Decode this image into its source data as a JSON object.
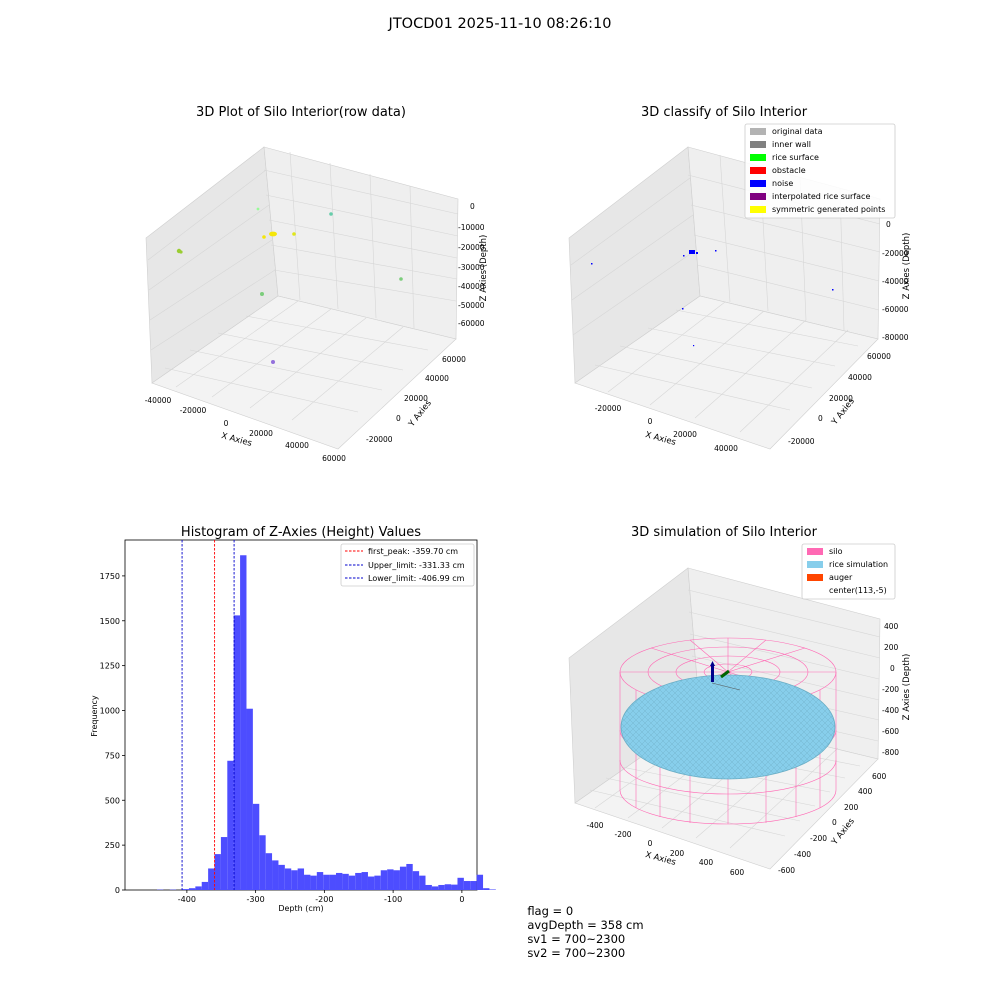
{
  "suptitle": "JTOCD01 2025-11-10 08:26:10",
  "colors": {
    "hist_bar": "#4d4dff",
    "first_peak": "#ff0000",
    "limit": "#0000cc",
    "silo": "#ff69b4",
    "rice": "#87ceeb",
    "auger": "#ff4500",
    "pane": "#f2f2f2"
  },
  "status": {
    "flag": "flag = 0",
    "avg_depth": "avgDepth = 358 cm",
    "sv1": "sv1 = 700~2300",
    "sv2": "sv2 = 700~2300"
  },
  "chart_data": [
    {
      "type": "scatter",
      "subtype": "3d",
      "title": "3D Plot of Silo Interior(row data)",
      "xlabel": "X Axies",
      "ylabel": "Y Axies",
      "zlabel": "Z Axies (Depth)",
      "x_ticks": [
        "-40000",
        "-20000",
        "0",
        "20000",
        "40000",
        "60000"
      ],
      "y_ticks": [
        "-20000",
        "0",
        "20000",
        "40000",
        "60000"
      ],
      "z_ticks": [
        "0",
        "-10000",
        "-20000",
        "-30000",
        "-40000",
        "-50000",
        "-60000"
      ],
      "point_clusters": [
        {
          "color": "#9acd32",
          "approx": "upper-left"
        },
        {
          "color": "#f5e60a",
          "approx": "center cluster"
        },
        {
          "color": "#7ccd7c",
          "approx": "center"
        },
        {
          "color": "#66cdaa",
          "approx": "upper-right"
        },
        {
          "color": "#9370db",
          "approx": "bottom"
        }
      ]
    },
    {
      "type": "scatter",
      "subtype": "3d",
      "title": "3D classify of Silo Interior",
      "xlabel": "X Axies",
      "ylabel": "Y Axies",
      "zlabel": "Z Axies (Depth)",
      "x_ticks": [
        "-20000",
        "0",
        "20000",
        "40000"
      ],
      "y_ticks": [
        "-20000",
        "0",
        "20000",
        "40000",
        "60000"
      ],
      "z_ticks": [
        "0",
        "-20000",
        "-40000",
        "-60000",
        "-80000"
      ],
      "legend": [
        {
          "label": "original data",
          "color": "#b3b3b3"
        },
        {
          "label": "inner wall",
          "color": "#808080"
        },
        {
          "label": "rice surface",
          "color": "#00ff00"
        },
        {
          "label": "obstacle",
          "color": "#ff0000"
        },
        {
          "label": "noise",
          "color": "#0000ff"
        },
        {
          "label": "interpolated rice surface",
          "color": "#800080"
        },
        {
          "label": "symmetric generated points",
          "color": "#ffff00"
        }
      ]
    },
    {
      "type": "bar",
      "subtype": "histogram",
      "title": "Histogram of Z-Axies (Height) Values",
      "xlabel": "Depth (cm)",
      "ylabel": "Frequency",
      "xlim": [
        -490,
        22
      ],
      "ylim": [
        0,
        1950
      ],
      "x_ticks": [
        -400,
        -300,
        -200,
        -100,
        0
      ],
      "y_ticks": [
        0,
        250,
        500,
        750,
        1000,
        1250,
        1500,
        1750
      ],
      "bin_start": -490,
      "bin_width": 9.3,
      "values": [
        0,
        0,
        0,
        0,
        0,
        2,
        0,
        2,
        0,
        5,
        10,
        20,
        45,
        120,
        200,
        295,
        720,
        1530,
        1865,
        1010,
        480,
        305,
        205,
        165,
        140,
        120,
        110,
        120,
        85,
        80,
        100,
        85,
        85,
        95,
        90,
        80,
        95,
        100,
        75,
        80,
        110,
        115,
        110,
        130,
        145,
        105,
        80,
        28,
        20,
        28,
        32,
        30,
        68,
        50,
        50,
        85,
        10,
        3
      ],
      "lines": [
        {
          "label": "first_peak: -359.70 cm",
          "x": -359.7,
          "color": "#ff0000"
        },
        {
          "label": "Upper_limit: -331.33 cm",
          "x": -331.33,
          "color": "#0000cc"
        },
        {
          "label": "Lower_limit: -406.99 cm",
          "x": -406.99,
          "color": "#0000cc"
        }
      ]
    },
    {
      "type": "area",
      "subtype": "3d-surface",
      "title": "3D simulation of Silo Interior",
      "xlabel": "X Axies",
      "ylabel": "Y Axies",
      "zlabel": "Z Axies (Depth)",
      "x_ticks": [
        "-400",
        "-200",
        "0",
        "200",
        "400",
        "600"
      ],
      "y_ticks": [
        "-600",
        "-400",
        "-200",
        "0",
        "200",
        "400",
        "600"
      ],
      "z_ticks": [
        "400",
        "200",
        "0",
        "-200",
        "-400",
        "-600",
        "-800"
      ],
      "legend": [
        {
          "label": "silo",
          "color": "#ff69b4"
        },
        {
          "label": "rice simulation",
          "color": "#87ceeb"
        },
        {
          "label": "auger",
          "color": "#ff4500"
        },
        {
          "label": "center(113,-5)",
          "color": "none"
        }
      ]
    }
  ]
}
